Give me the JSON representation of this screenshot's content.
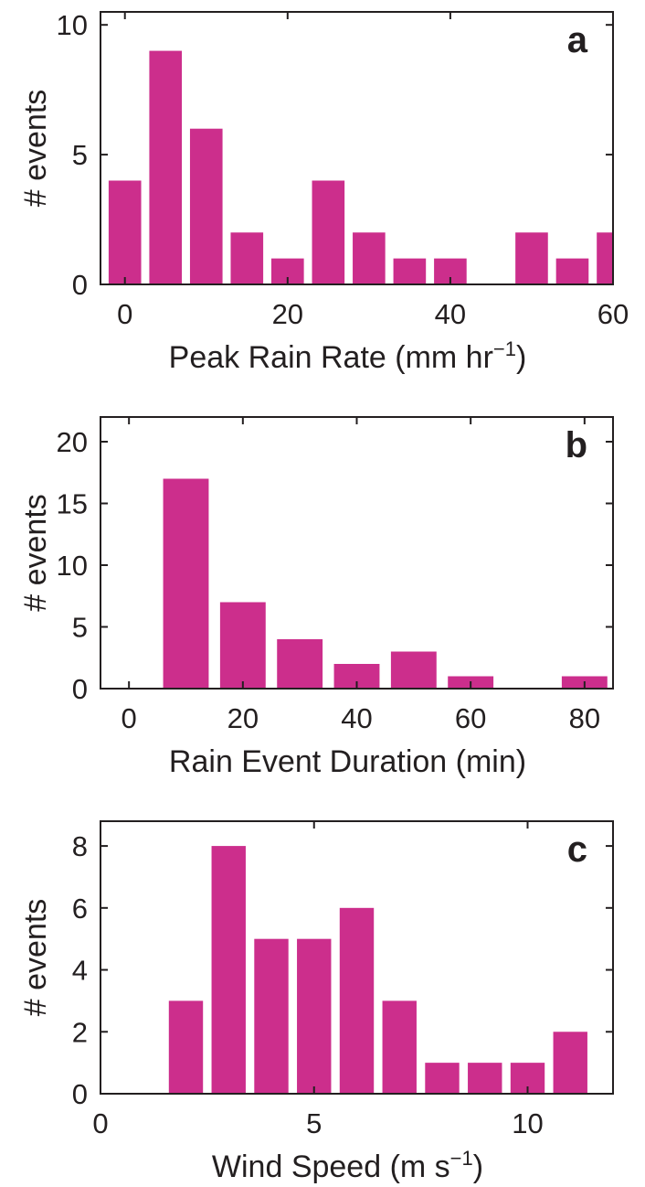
{
  "style": {
    "bar_color": "#cc2e8c",
    "axis_color": "#231f20"
  },
  "chart_data": [
    {
      "type": "bar",
      "panel_label": "a",
      "ylabel": "# events",
      "xlabel": {
        "main": "Peak Rain Rate (mm hr",
        "sup": "−1",
        "tail": ")"
      },
      "xlim": [
        -3,
        60
      ],
      "ylim": [
        0,
        10.5
      ],
      "xticks": [
        0,
        20,
        40,
        60
      ],
      "yticks": [
        0,
        5,
        10
      ],
      "bar_width": 4,
      "x": [
        0,
        5,
        10,
        15,
        20,
        25,
        30,
        35,
        40,
        45,
        50,
        55,
        60
      ],
      "values": [
        4,
        9,
        6,
        2,
        1,
        4,
        2,
        1,
        1,
        0,
        2,
        1,
        2
      ],
      "grid": false
    },
    {
      "type": "bar",
      "panel_label": "b",
      "ylabel": "# events",
      "xlabel": {
        "main": "Rain Event Duration (min)",
        "sup": "",
        "tail": ""
      },
      "xlim": [
        -5,
        85
      ],
      "ylim": [
        0,
        22
      ],
      "xticks": [
        0,
        20,
        40,
        60,
        80
      ],
      "yticks": [
        0,
        5,
        10,
        15,
        20
      ],
      "bar_width": 8,
      "x": [
        0,
        10,
        20,
        30,
        40,
        50,
        60,
        70,
        80
      ],
      "values": [
        0,
        17,
        7,
        4,
        2,
        3,
        1,
        0,
        1
      ],
      "grid": false
    },
    {
      "type": "bar",
      "panel_label": "c",
      "ylabel": "# events",
      "xlabel": {
        "main": "Wind Speed (m s",
        "sup": "−1",
        "tail": ")"
      },
      "xlim": [
        0,
        12
      ],
      "ylim": [
        0,
        8.8
      ],
      "xticks": [
        0,
        5,
        10
      ],
      "yticks": [
        0,
        2,
        4,
        6,
        8
      ],
      "bar_width": 0.8,
      "x": [
        2,
        3,
        4,
        5,
        6,
        7,
        8,
        9,
        10,
        11
      ],
      "values": [
        3,
        8,
        5,
        5,
        6,
        3,
        1,
        1,
        1,
        2
      ],
      "grid": false
    }
  ]
}
